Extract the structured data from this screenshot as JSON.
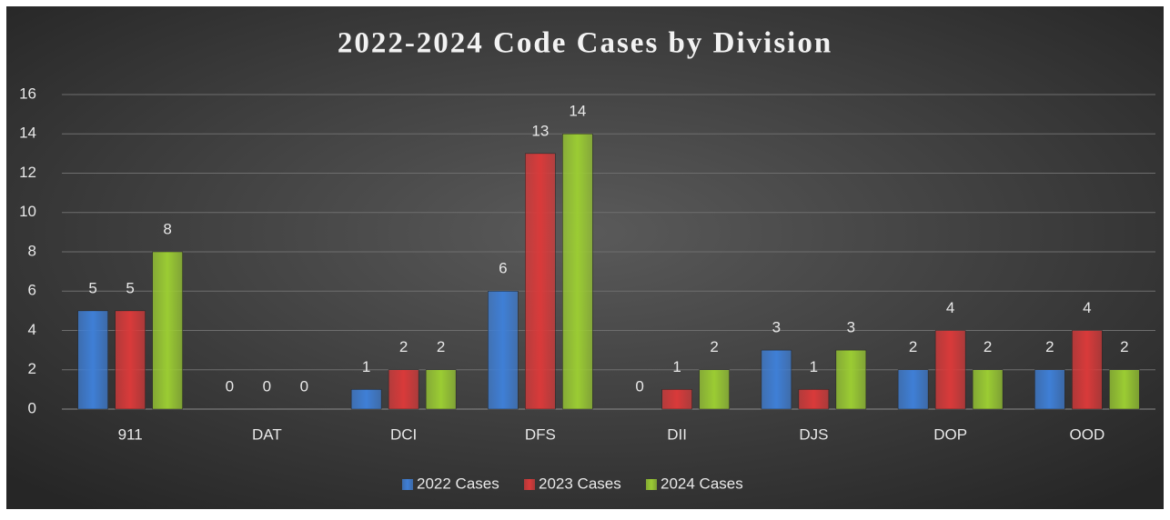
{
  "chart_data": {
    "type": "bar",
    "title": "2022-2024 Code Cases by Division",
    "categories": [
      "911",
      "DAT",
      "DCI",
      "DFS",
      "DII",
      "DJS",
      "DOP",
      "OOD"
    ],
    "series": [
      {
        "name": "2022 Cases",
        "color": "#3f7fd6",
        "values": [
          5,
          0,
          1,
          6,
          0,
          3,
          2,
          2
        ]
      },
      {
        "name": "2023 Cases",
        "color": "#d93a3a",
        "values": [
          5,
          0,
          2,
          13,
          1,
          1,
          4,
          4
        ]
      },
      {
        "name": "2024 Cases",
        "color": "#9bcc33",
        "values": [
          8,
          0,
          2,
          14,
          2,
          3,
          2,
          2
        ]
      }
    ],
    "ylim": [
      0,
      16
    ],
    "yticks": [
      0,
      2,
      4,
      6,
      8,
      10,
      12,
      14,
      16
    ],
    "grid": true,
    "legend": "bottom"
  }
}
